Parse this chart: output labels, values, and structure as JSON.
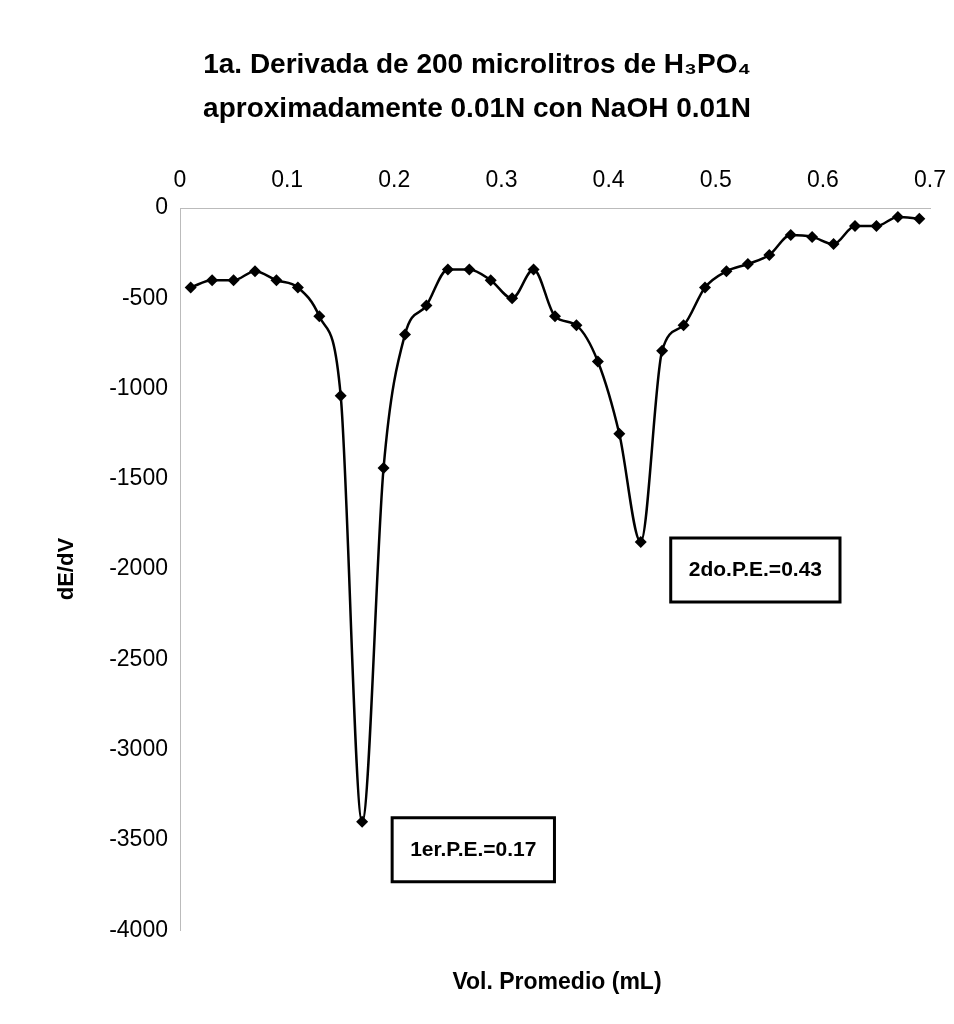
{
  "chart_data": {
    "type": "line",
    "title": "1a. Derivada de 200 microlitros de H₃PO₄ aproximadamente 0.01N con NaOH 0.01N",
    "xlabel": "Vol. Promedio (mL)",
    "ylabel": "dE/dV",
    "x": [
      0.01,
      0.03,
      0.05,
      0.07,
      0.09,
      0.11,
      0.13,
      0.15,
      0.17,
      0.19,
      0.21,
      0.23,
      0.25,
      0.27,
      0.29,
      0.31,
      0.33,
      0.35,
      0.37,
      0.39,
      0.41,
      0.43,
      0.45,
      0.47,
      0.49,
      0.51,
      0.53,
      0.55,
      0.57,
      0.59,
      0.61,
      0.63,
      0.65,
      0.67,
      0.69
    ],
    "series": [
      {
        "color": "#000000",
        "values": [
          -440,
          -400,
          -400,
          -350,
          -400,
          -440,
          -600,
          -1040,
          -3400,
          -1440,
          -700,
          -540,
          -340,
          -340,
          -400,
          -500,
          -340,
          -600,
          -650,
          -850,
          -1250,
          -1850,
          -790,
          -650,
          -440,
          -350,
          -310,
          -260,
          -150,
          -160,
          -200,
          -100,
          -100,
          -50,
          -60
        ]
      }
    ],
    "xlim": [
      0,
      0.7
    ],
    "xticks": [
      0,
      0.1,
      0.2,
      0.3,
      0.4,
      0.5,
      0.6,
      0.7
    ],
    "ylim": [
      -4000,
      0
    ],
    "yticks": [
      -4000,
      -3500,
      -3000,
      -2500,
      -2000,
      -1500,
      -1000,
      -500,
      0
    ],
    "marker": "diamond",
    "line_style": "solid",
    "grid": false,
    "legend": false,
    "annotations": [
      {
        "text": "1er.P.E.=0.17",
        "x": 0.17,
        "y": -3400
      },
      {
        "text": "2do.P.E.=0.43",
        "x": 0.43,
        "y": -1850
      }
    ]
  }
}
